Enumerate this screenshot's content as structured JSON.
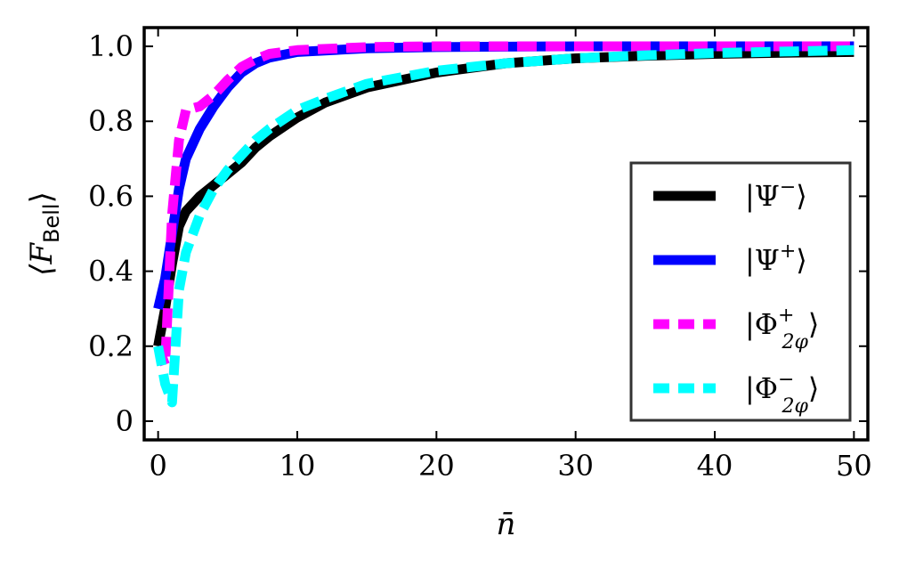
{
  "chart_data": {
    "type": "line",
    "xlabel": "n̄",
    "ylabel_main": "⟨F",
    "ylabel_sub": "Bell",
    "ylabel_close": "⟩",
    "xlim": [
      -1,
      51
    ],
    "ylim": [
      -0.05,
      1.05
    ],
    "x_ticks": [
      0,
      10,
      20,
      30,
      40,
      50
    ],
    "x_tick_labels": [
      "0",
      "10",
      "20",
      "30",
      "40",
      "50"
    ],
    "y_ticks": [
      0,
      0.2,
      0.4,
      0.6,
      0.8,
      1.0
    ],
    "y_tick_labels": [
      "0",
      "0.2",
      "0.4",
      "0.6",
      "0.8",
      "1.0"
    ],
    "grid": false,
    "legend_position": "lower-right",
    "series": [
      {
        "name": "|Ψ⁻⟩",
        "legend": {
          "main": "|Ψ",
          "sup": "−",
          "sub": "",
          "close": "⟩"
        },
        "color": "#000000",
        "style": "solid",
        "x": [
          0,
          0.5,
          1,
          1.5,
          2,
          3,
          4,
          5,
          6,
          7,
          8,
          10,
          12,
          15,
          20,
          25,
          30,
          35,
          40,
          45,
          50
        ],
        "y": [
          0.2,
          0.3,
          0.42,
          0.52,
          0.56,
          0.6,
          0.63,
          0.66,
          0.69,
          0.73,
          0.76,
          0.81,
          0.85,
          0.89,
          0.93,
          0.955,
          0.968,
          0.975,
          0.98,
          0.983,
          0.985
        ]
      },
      {
        "name": "|Ψ⁺⟩",
        "legend": {
          "main": "|Ψ",
          "sup": "+",
          "sub": "",
          "close": "⟩"
        },
        "color": "#0000ff",
        "style": "solid",
        "x": [
          0,
          0.5,
          1,
          1.5,
          2,
          3,
          4,
          5,
          6,
          7,
          8,
          10,
          15,
          20,
          30,
          40,
          50
        ],
        "y": [
          0.3,
          0.38,
          0.5,
          0.62,
          0.7,
          0.78,
          0.84,
          0.89,
          0.93,
          0.955,
          0.97,
          0.985,
          0.995,
          0.998,
          1.0,
          1.0,
          1.0
        ]
      },
      {
        "name": "|Φ⁺₂φ⟩",
        "legend": {
          "main": "|Φ",
          "sup": "+",
          "sub": "2φ",
          "close": "⟩"
        },
        "color": "#ff00ff",
        "style": "dashed",
        "x": [
          0,
          0.5,
          1,
          1.5,
          2,
          3,
          4,
          5,
          6,
          7,
          8,
          10,
          15,
          20,
          30,
          40,
          50
        ],
        "y": [
          0.2,
          0.15,
          0.55,
          0.75,
          0.83,
          0.84,
          0.87,
          0.91,
          0.945,
          0.965,
          0.98,
          0.99,
          0.998,
          1.0,
          1.0,
          1.0,
          1.0
        ]
      },
      {
        "name": "|Φ⁻₂φ⟩",
        "legend": {
          "main": "|Φ",
          "sup": "−",
          "sub": "2φ",
          "close": "⟩"
        },
        "color": "#00ffff",
        "style": "dashed",
        "x": [
          0,
          0.5,
          1,
          1.5,
          2,
          3,
          4,
          5,
          6,
          7,
          8,
          10,
          12,
          15,
          20,
          25,
          30,
          35,
          40,
          45,
          50
        ],
        "y": [
          0.2,
          0.1,
          0.05,
          0.35,
          0.45,
          0.55,
          0.62,
          0.67,
          0.71,
          0.75,
          0.78,
          0.83,
          0.86,
          0.9,
          0.935,
          0.955,
          0.968,
          0.976,
          0.982,
          0.986,
          0.99
        ]
      }
    ]
  }
}
